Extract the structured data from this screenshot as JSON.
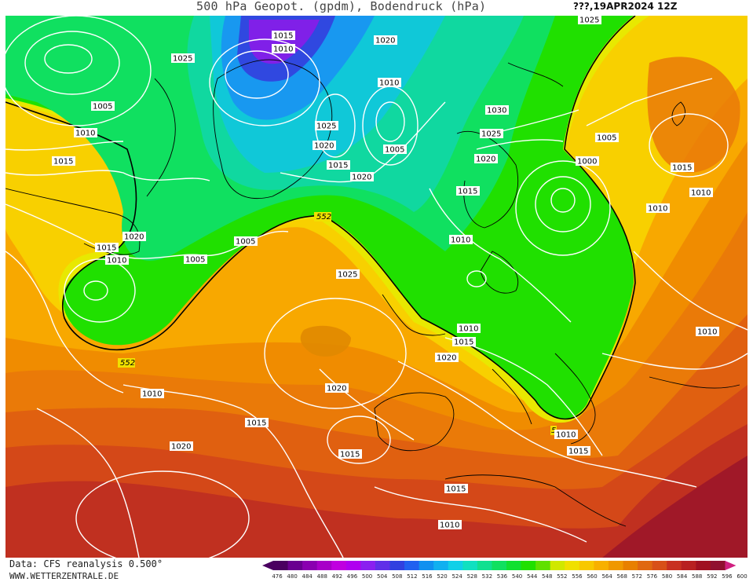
{
  "header": {
    "title": "500 hPa Geopot. (gpdm), Bodendruck (hPa)",
    "date": "???,19APR2024 12Z"
  },
  "footer": {
    "data_label": "Data: CFS reanalysis 0.500°",
    "site": "WWW.WETTERZENTRALE.DE"
  },
  "legend": {
    "levels": [
      "476",
      "480",
      "484",
      "488",
      "492",
      "496",
      "500",
      "504",
      "508",
      "512",
      "516",
      "520",
      "524",
      "528",
      "532",
      "536",
      "540",
      "544",
      "548",
      "552",
      "556",
      "560",
      "564",
      "568",
      "572",
      "576",
      "580",
      "584",
      "588",
      "592",
      "596",
      "600"
    ],
    "colors": [
      "#4a0060",
      "#6a0090",
      "#8a00b0",
      "#a800c8",
      "#c000e0",
      "#b000f0",
      "#8a20f0",
      "#6030e8",
      "#3040e0",
      "#2060f0",
      "#1090f0",
      "#10b0f0",
      "#10d0e8",
      "#10e0c0",
      "#10e090",
      "#10e060",
      "#10e030",
      "#20e000",
      "#60e000",
      "#d0e800",
      "#f0e000",
      "#f8c800",
      "#f8b000",
      "#f09800",
      "#e88000",
      "#e06810",
      "#d85018",
      "#c83020",
      "#b82020",
      "#a01020",
      "#901030",
      "#d02080"
    ]
  },
  "map": {
    "geopotential_labels": [
      "552",
      "552",
      "5"
    ],
    "pressure_labels": [
      "1015",
      "1010",
      "1025",
      "1020",
      "1005",
      "1010",
      "1015",
      "1020",
      "1015",
      "1010",
      "1005",
      "1025",
      "1020",
      "1015",
      "1005",
      "1010",
      "1020",
      "1025",
      "1030",
      "1005",
      "1025",
      "1020",
      "1015",
      "1010",
      "1000",
      "1005",
      "1015",
      "1010",
      "1010",
      "1025",
      "1010",
      "1015",
      "1020",
      "1020",
      "1010",
      "1010",
      "1015",
      "1015",
      "1015",
      "1010",
      "1020",
      "1015",
      "1010"
    ]
  }
}
